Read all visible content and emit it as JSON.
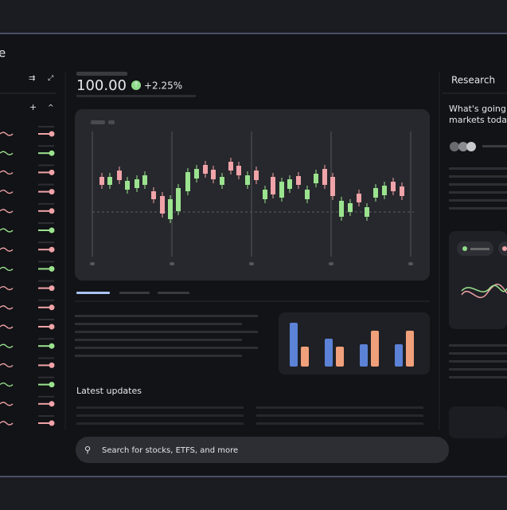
{
  "header": {
    "title": "e"
  },
  "quote": {
    "price": "100.00",
    "change": "+2.25%"
  },
  "research": {
    "title": "Research",
    "question_lines": [
      "What's going o",
      "markets today?"
    ]
  },
  "updates": {
    "title": "Latest updates"
  },
  "search": {
    "placeholder": "Search for stocks, ETFS, and more"
  }
}
